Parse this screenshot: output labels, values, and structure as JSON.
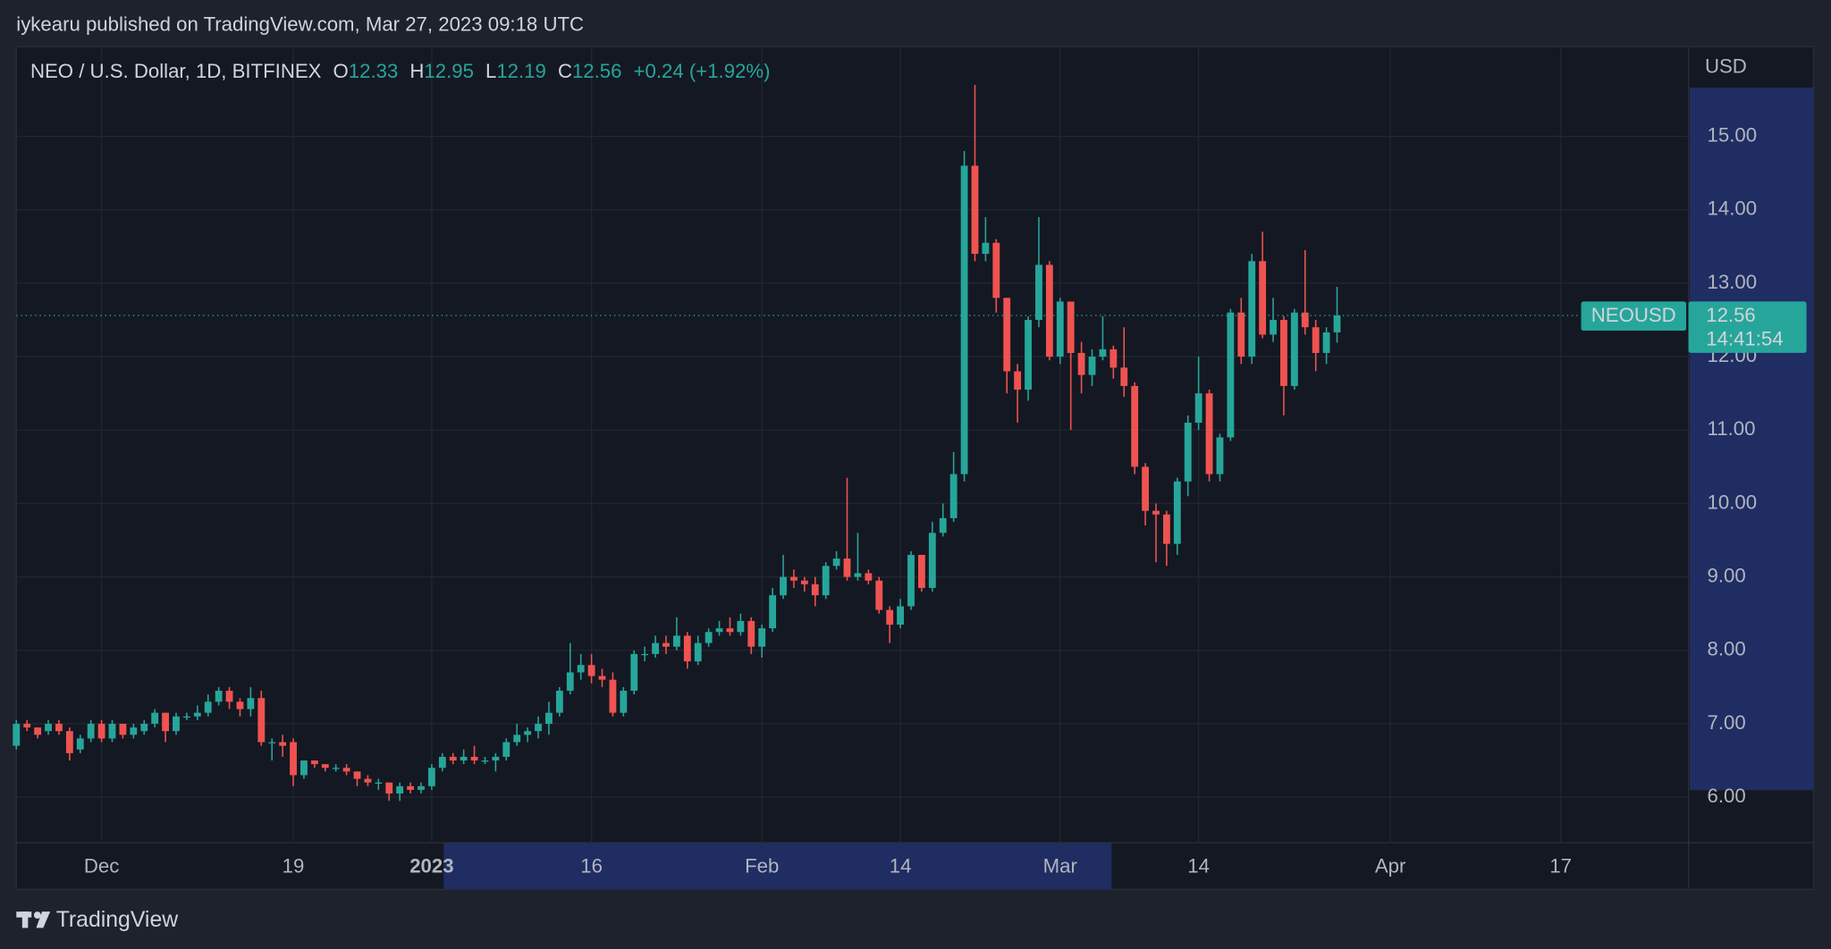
{
  "header": "iykearu published on TradingView.com, Mar 27, 2023 09:18 UTC",
  "brand": "TradingView",
  "chart_data": {
    "type": "candlestick",
    "legend_title": "NEO / U.S. Dollar, 1D, BITFINEX",
    "ohlc_letters": [
      "O",
      "H",
      "L",
      "C"
    ],
    "change": "+0.24 (+1.92%)",
    "y_label": "USD",
    "symbol": "NEOUSD",
    "bar_countdown": "14:41:54",
    "up_color": "#26a69a",
    "down_color": "#ef5350",
    "grid": true,
    "x": [
      "2022-11-23",
      "2022-11-24",
      "2022-11-25",
      "2022-11-26",
      "2022-11-27",
      "2022-11-28",
      "2022-11-29",
      "2022-11-30",
      "2022-12-01",
      "2022-12-02",
      "2022-12-03",
      "2022-12-04",
      "2022-12-05",
      "2022-12-06",
      "2022-12-07",
      "2022-12-08",
      "2022-12-09",
      "2022-12-10",
      "2022-12-11",
      "2022-12-12",
      "2022-12-13",
      "2022-12-14",
      "2022-12-15",
      "2022-12-16",
      "2022-12-17",
      "2022-12-18",
      "2022-12-19",
      "2022-12-20",
      "2022-12-21",
      "2022-12-22",
      "2022-12-23",
      "2022-12-24",
      "2022-12-25",
      "2022-12-26",
      "2022-12-27",
      "2022-12-28",
      "2022-12-29",
      "2022-12-30",
      "2022-12-31",
      "2023-01-01",
      "2023-01-02",
      "2023-01-03",
      "2023-01-04",
      "2023-01-05",
      "2023-01-06",
      "2023-01-07",
      "2023-01-08",
      "2023-01-09",
      "2023-01-10",
      "2023-01-11",
      "2023-01-12",
      "2023-01-13",
      "2023-01-14",
      "2023-01-15",
      "2023-01-16",
      "2023-01-17",
      "2023-01-18",
      "2023-01-19",
      "2023-01-20",
      "2023-01-21",
      "2023-01-22",
      "2023-01-23",
      "2023-01-24",
      "2023-01-25",
      "2023-01-26",
      "2023-01-27",
      "2023-01-28",
      "2023-01-29",
      "2023-01-30",
      "2023-01-31",
      "2023-02-01",
      "2023-02-02",
      "2023-02-03",
      "2023-02-04",
      "2023-02-05",
      "2023-02-06",
      "2023-02-07",
      "2023-02-08",
      "2023-02-09",
      "2023-02-10",
      "2023-02-11",
      "2023-02-12",
      "2023-02-13",
      "2023-02-14",
      "2023-02-15",
      "2023-02-16",
      "2023-02-17",
      "2023-02-18",
      "2023-02-19",
      "2023-02-20",
      "2023-02-21",
      "2023-02-22",
      "2023-02-23",
      "2023-02-24",
      "2023-02-25",
      "2023-02-26",
      "2023-02-27",
      "2023-02-28",
      "2023-03-01",
      "2023-03-02",
      "2023-03-03",
      "2023-03-04",
      "2023-03-05",
      "2023-03-06",
      "2023-03-07",
      "2023-03-08",
      "2023-03-09",
      "2023-03-10",
      "2023-03-11",
      "2023-03-12",
      "2023-03-13",
      "2023-03-14",
      "2023-03-15",
      "2023-03-16",
      "2023-03-17",
      "2023-03-18",
      "2023-03-19",
      "2023-03-20",
      "2023-03-21",
      "2023-03-22",
      "2023-03-23",
      "2023-03-24",
      "2023-03-25",
      "2023-03-26",
      "2023-03-27"
    ],
    "open": [
      6.7,
      7.0,
      6.95,
      6.9,
      7.0,
      6.9,
      6.65,
      6.8,
      7.0,
      6.8,
      7.0,
      6.85,
      6.9,
      7.0,
      7.15,
      6.9,
      7.1,
      7.1,
      7.15,
      7.3,
      7.45,
      7.3,
      7.2,
      7.35,
      6.75,
      6.75,
      6.75,
      6.3,
      6.5,
      6.45,
      6.4,
      6.4,
      6.35,
      6.25,
      6.2,
      6.2,
      6.05,
      6.15,
      6.1,
      6.15,
      6.4,
      6.55,
      6.5,
      6.55,
      6.5,
      6.5,
      6.55,
      6.75,
      6.85,
      6.9,
      7.0,
      7.15,
      7.45,
      7.7,
      7.8,
      7.65,
      7.6,
      7.15,
      7.45,
      7.95,
      7.95,
      8.1,
      8.05,
      8.2,
      7.85,
      8.1,
      8.25,
      8.3,
      8.25,
      8.4,
      8.05,
      8.3,
      8.75,
      9.0,
      8.95,
      8.9,
      8.75,
      9.15,
      9.25,
      9.0,
      9.05,
      8.95,
      8.55,
      8.35,
      8.6,
      9.3,
      8.85,
      9.6,
      9.8,
      10.4,
      14.6,
      13.4,
      13.55,
      12.8,
      11.8,
      11.55,
      12.5,
      13.25,
      12.0,
      12.75,
      12.05,
      11.75,
      12.0,
      12.1,
      11.85,
      11.6,
      10.5,
      9.9,
      9.85,
      9.45,
      10.3,
      11.1,
      11.5,
      10.4,
      10.9,
      12.6,
      12.0,
      13.3,
      12.3,
      12.5,
      11.6,
      12.6,
      12.4,
      12.05,
      12.33
    ],
    "high": [
      7.05,
      7.05,
      6.95,
      7.05,
      7.05,
      6.95,
      6.85,
      7.05,
      7.05,
      7.05,
      7.0,
      7.0,
      7.05,
      7.2,
      7.15,
      7.15,
      7.15,
      7.25,
      7.4,
      7.5,
      7.5,
      7.35,
      7.5,
      7.45,
      6.8,
      6.85,
      6.8,
      6.5,
      6.5,
      6.45,
      6.45,
      6.45,
      6.35,
      6.3,
      6.25,
      6.2,
      6.2,
      6.2,
      6.2,
      6.45,
      6.6,
      6.6,
      6.65,
      6.7,
      6.55,
      6.6,
      6.8,
      7.0,
      6.95,
      7.1,
      7.3,
      7.5,
      8.1,
      7.95,
      7.95,
      7.75,
      7.7,
      7.5,
      8.0,
      8.05,
      8.2,
      8.2,
      8.45,
      8.25,
      8.2,
      8.3,
      8.4,
      8.45,
      8.5,
      8.45,
      8.35,
      8.85,
      9.3,
      9.1,
      9.0,
      9.0,
      9.2,
      9.35,
      10.35,
      9.6,
      9.1,
      9.0,
      8.6,
      8.7,
      9.35,
      9.3,
      9.75,
      10.0,
      10.7,
      14.8,
      15.7,
      13.9,
      13.6,
      12.8,
      11.9,
      12.55,
      13.9,
      13.3,
      12.8,
      12.75,
      12.2,
      12.1,
      12.55,
      12.15,
      12.4,
      11.65,
      10.55,
      10.0,
      9.9,
      10.35,
      11.2,
      12.0,
      11.55,
      10.95,
      12.65,
      12.8,
      13.4,
      13.7,
      12.8,
      12.55,
      12.65,
      13.45,
      12.5,
      12.4,
      12.95
    ],
    "low": [
      6.65,
      6.9,
      6.8,
      6.85,
      6.85,
      6.5,
      6.6,
      6.75,
      6.75,
      6.75,
      6.8,
      6.8,
      6.85,
      6.95,
      6.75,
      6.85,
      7.05,
      7.05,
      7.1,
      7.25,
      7.2,
      7.1,
      7.1,
      6.7,
      6.5,
      6.55,
      6.15,
      6.25,
      6.4,
      6.35,
      6.35,
      6.3,
      6.15,
      6.15,
      6.1,
      5.95,
      5.95,
      6.05,
      6.05,
      6.1,
      6.35,
      6.45,
      6.45,
      6.45,
      6.45,
      6.35,
      6.5,
      6.7,
      6.75,
      6.8,
      6.85,
      7.1,
      7.4,
      7.6,
      7.55,
      7.5,
      7.1,
      7.1,
      7.4,
      7.85,
      7.9,
      7.95,
      8.0,
      7.75,
      7.8,
      8.05,
      8.2,
      8.2,
      8.2,
      7.95,
      7.9,
      8.25,
      8.7,
      8.85,
      8.8,
      8.6,
      8.7,
      9.1,
      8.95,
      8.95,
      8.9,
      8.5,
      8.1,
      8.3,
      8.55,
      8.8,
      8.8,
      9.55,
      9.75,
      10.3,
      13.3,
      13.3,
      12.6,
      11.5,
      11.1,
      11.4,
      12.4,
      11.95,
      11.9,
      11.0,
      11.5,
      11.6,
      11.95,
      11.7,
      11.45,
      10.4,
      9.7,
      9.2,
      9.15,
      9.3,
      10.1,
      11.0,
      10.3,
      10.3,
      10.85,
      11.9,
      11.9,
      12.25,
      12.2,
      11.2,
      11.55,
      12.3,
      11.8,
      11.9,
      12.19
    ],
    "close": [
      7.0,
      6.95,
      6.85,
      7.0,
      6.9,
      6.6,
      6.8,
      7.0,
      6.8,
      7.0,
      6.85,
      6.95,
      7.0,
      7.15,
      6.9,
      7.1,
      7.1,
      7.15,
      7.3,
      7.45,
      7.3,
      7.2,
      7.35,
      6.75,
      6.75,
      6.7,
      6.3,
      6.5,
      6.45,
      6.4,
      6.4,
      6.35,
      6.25,
      6.2,
      6.2,
      6.05,
      6.15,
      6.1,
      6.15,
      6.4,
      6.55,
      6.5,
      6.55,
      6.5,
      6.5,
      6.55,
      6.75,
      6.85,
      6.9,
      7.0,
      7.15,
      7.45,
      7.7,
      7.8,
      7.65,
      7.6,
      7.15,
      7.45,
      7.95,
      7.95,
      8.1,
      8.05,
      8.2,
      7.85,
      8.1,
      8.25,
      8.3,
      8.25,
      8.4,
      8.05,
      8.3,
      8.75,
      9.0,
      8.95,
      8.9,
      8.75,
      9.15,
      9.25,
      9.0,
      9.05,
      8.95,
      8.55,
      8.35,
      8.6,
      9.3,
      8.85,
      9.6,
      9.8,
      10.4,
      14.6,
      13.4,
      13.55,
      12.8,
      11.8,
      11.55,
      12.5,
      13.25,
      12.0,
      12.75,
      12.05,
      11.75,
      12.0,
      12.1,
      11.85,
      11.6,
      10.5,
      9.9,
      9.85,
      9.45,
      10.3,
      11.1,
      11.5,
      10.4,
      10.9,
      12.6,
      12.0,
      13.3,
      12.3,
      12.5,
      11.6,
      12.6,
      12.4,
      12.05,
      12.33,
      12.56
    ],
    "xlim": [
      "2022-11-23",
      "2023-04-29"
    ],
    "xticks": [
      {
        "value": "2022-12-01",
        "label": "Dec"
      },
      {
        "value": "2022-12-19",
        "label": "19"
      },
      {
        "value": "2023-01-01",
        "label": "2023"
      },
      {
        "value": "2023-01-16",
        "label": "16"
      },
      {
        "value": "2023-02-01",
        "label": "Feb"
      },
      {
        "value": "2023-02-14",
        "label": "14"
      },
      {
        "value": "2023-03-01",
        "label": "Mar"
      },
      {
        "value": "2023-03-14",
        "label": "14"
      },
      {
        "value": "2023-04-01",
        "label": "Apr"
      },
      {
        "value": "2023-04-17",
        "label": "17"
      }
    ],
    "ylim": [
      5.38,
      16.22
    ],
    "yticks": [
      {
        "value": 6,
        "label": "6.00"
      },
      {
        "value": 7,
        "label": "7.00"
      },
      {
        "value": 8,
        "label": "8.00"
      },
      {
        "value": 9,
        "label": "9.00"
      },
      {
        "value": 10,
        "label": "10.00"
      },
      {
        "value": 11,
        "label": "11.00"
      },
      {
        "value": 12,
        "label": "12.00"
      },
      {
        "value": 13,
        "label": "13.00"
      },
      {
        "value": 14,
        "label": "14.00"
      },
      {
        "value": 15,
        "label": "15.00"
      }
    ]
  }
}
